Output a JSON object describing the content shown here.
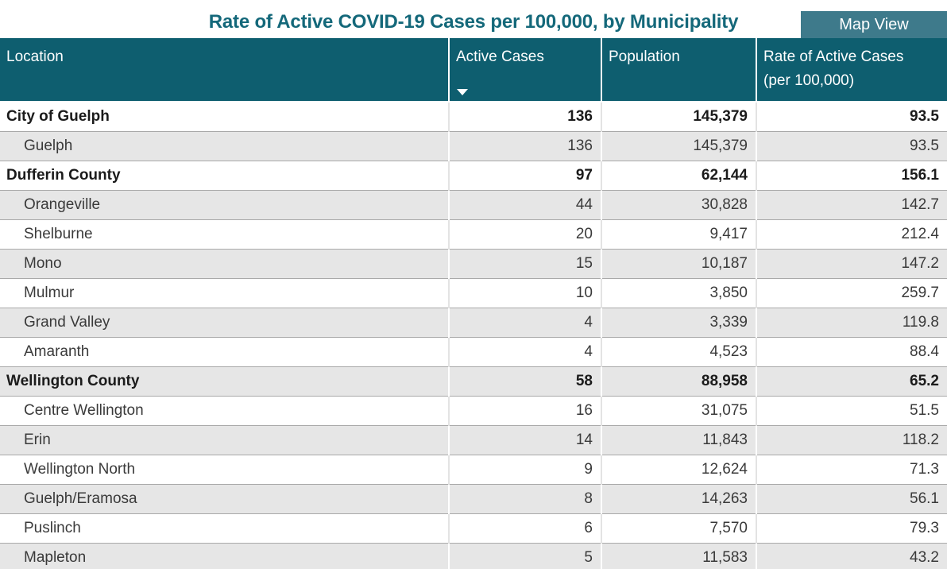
{
  "title": "Rate of Active COVID-19 Cases per 100,000, by Municipality",
  "map_view_label": "Map View",
  "colors": {
    "header_bg": "#0e5e6f",
    "title_text": "#14687a",
    "button_bg": "#3e7a8b",
    "button_text": "#ffffff",
    "row_alt_bg": "#e6e6e6",
    "row_border": "#a9a9a9"
  },
  "table": {
    "headers": {
      "location": "Location",
      "active_cases": "Active Cases",
      "population": "Population",
      "rate_line1": "Rate of Active Cases",
      "rate_line2": "(per 100,000)"
    },
    "sort_indicator": {
      "column": "active_cases",
      "direction": "descending",
      "icon": "sort-descending-icon"
    },
    "rows": [
      {
        "location": "City of Guelph",
        "active_cases": "136",
        "population": "145,379",
        "rate": "93.5",
        "group": true
      },
      {
        "location": "Guelph",
        "active_cases": "136",
        "population": "145,379",
        "rate": "93.5",
        "group": false
      },
      {
        "location": "Dufferin County",
        "active_cases": "97",
        "population": "62,144",
        "rate": "156.1",
        "group": true
      },
      {
        "location": "Orangeville",
        "active_cases": "44",
        "population": "30,828",
        "rate": "142.7",
        "group": false
      },
      {
        "location": "Shelburne",
        "active_cases": "20",
        "population": "9,417",
        "rate": "212.4",
        "group": false
      },
      {
        "location": "Mono",
        "active_cases": "15",
        "population": "10,187",
        "rate": "147.2",
        "group": false
      },
      {
        "location": "Mulmur",
        "active_cases": "10",
        "population": "3,850",
        "rate": "259.7",
        "group": false
      },
      {
        "location": "Grand Valley",
        "active_cases": "4",
        "population": "3,339",
        "rate": "119.8",
        "group": false
      },
      {
        "location": "Amaranth",
        "active_cases": "4",
        "population": "4,523",
        "rate": "88.4",
        "group": false
      },
      {
        "location": "Wellington County",
        "active_cases": "58",
        "population": "88,958",
        "rate": "65.2",
        "group": true
      },
      {
        "location": "Centre Wellington",
        "active_cases": "16",
        "population": "31,075",
        "rate": "51.5",
        "group": false
      },
      {
        "location": "Erin",
        "active_cases": "14",
        "population": "11,843",
        "rate": "118.2",
        "group": false
      },
      {
        "location": "Wellington North",
        "active_cases": "9",
        "population": "12,624",
        "rate": "71.3",
        "group": false
      },
      {
        "location": "Guelph/Eramosa",
        "active_cases": "8",
        "population": "14,263",
        "rate": "56.1",
        "group": false
      },
      {
        "location": "Puslinch",
        "active_cases": "6",
        "population": "7,570",
        "rate": "79.3",
        "group": false
      },
      {
        "location": "Mapleton",
        "active_cases": "5",
        "population": "11,583",
        "rate": "43.2",
        "group": false
      }
    ]
  }
}
